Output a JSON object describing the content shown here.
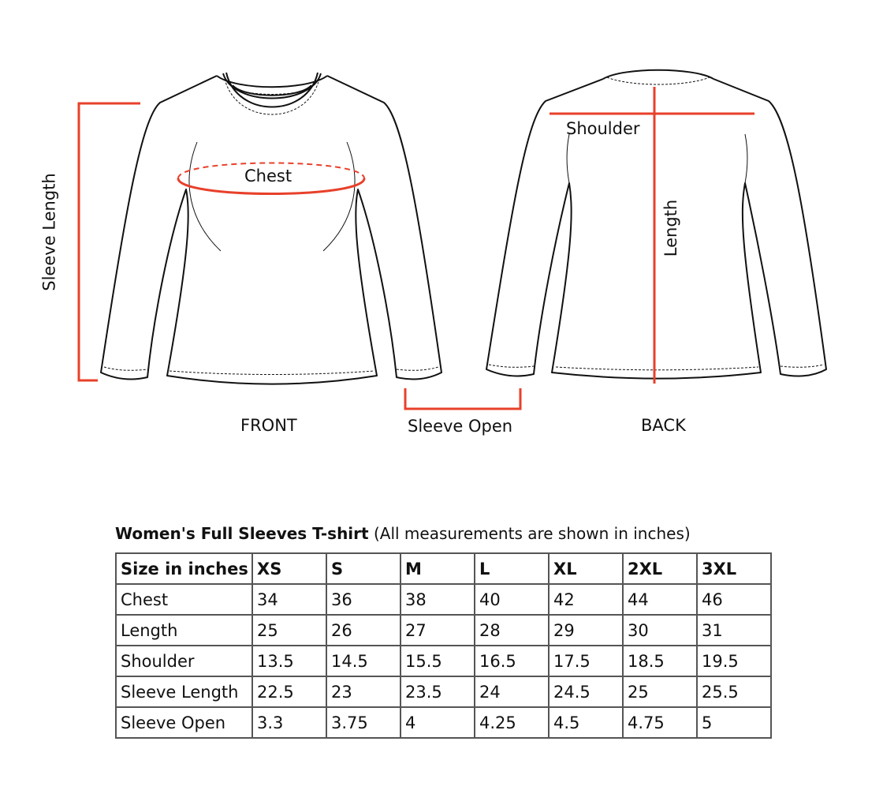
{
  "labels": {
    "chest": "Chest",
    "sleeve_length": "Sleeve Length",
    "shoulder": "Shoulder",
    "length": "Length",
    "sleeve_open": "Sleeve Open",
    "front": "FRONT",
    "back": "BACK"
  },
  "colors": {
    "measure_line": "#e8402a",
    "outline": "#111111"
  },
  "table": {
    "title_bold": "Women's Full Sleeves T-shirt",
    "title_note": "(All measurements are shown in inches)",
    "header": [
      "Size in inches",
      "XS",
      "S",
      "M",
      "L",
      "XL",
      "2XL",
      "3XL"
    ],
    "rows": [
      [
        "Chest",
        "34",
        "36",
        "38",
        "40",
        "42",
        "44",
        "46"
      ],
      [
        "Length",
        "25",
        "26",
        "27",
        "28",
        "29",
        "30",
        "31"
      ],
      [
        "Shoulder",
        "13.5",
        "14.5",
        "15.5",
        "16.5",
        "17.5",
        "18.5",
        "19.5"
      ],
      [
        "Sleeve Length",
        "22.5",
        "23",
        "23.5",
        "24",
        "24.5",
        "25",
        "25.5"
      ],
      [
        "Sleeve Open",
        "3.3",
        "3.75",
        "4",
        "4.25",
        "4.5",
        "4.75",
        "5"
      ]
    ]
  }
}
